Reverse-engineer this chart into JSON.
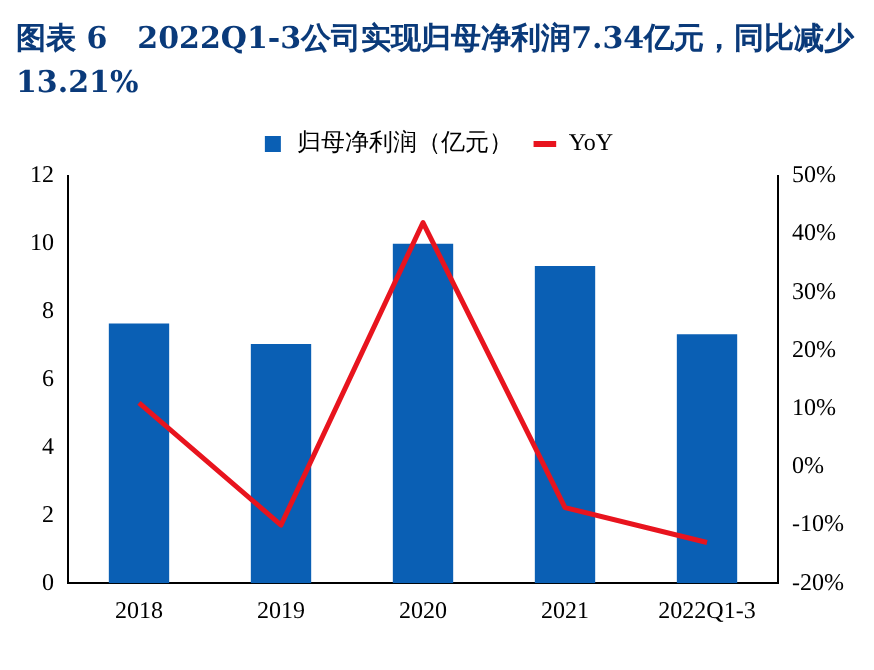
{
  "chart_data": {
    "type": "bar",
    "title": "图表 6　2022Q1-3公司实现归母净利润7.34亿元，同比减少13.21%",
    "categories": [
      "2018",
      "2019",
      "2020",
      "2021",
      "2022Q1-3"
    ],
    "series": [
      {
        "name": "归母净利润（亿元）",
        "color": "#0a5fb4",
        "values": [
          7.65,
          7.05,
          10.0,
          9.35,
          7.34
        ]
      },
      {
        "name": "YoY",
        "type": "line",
        "axis": "y2",
        "color": "#e8141e",
        "values": [
          11,
          -10,
          42,
          -7,
          -13
        ]
      }
    ],
    "ylim": [
      0,
      12
    ],
    "yticks": [
      0,
      2,
      4,
      6,
      8,
      10,
      12
    ],
    "y2lim": [
      -20,
      50
    ],
    "y2ticks": [
      {
        "value": -20,
        "label": "-20%"
      },
      {
        "value": -10,
        "label": "-10%"
      },
      {
        "value": 0,
        "label": "0%"
      },
      {
        "value": 10,
        "label": "10%"
      },
      {
        "value": 20,
        "label": "20%"
      },
      {
        "value": 30,
        "label": "30%"
      },
      {
        "value": 40,
        "label": "40%"
      },
      {
        "value": 50,
        "label": "50%"
      }
    ],
    "grid": false,
    "legend": "top",
    "marker": "none"
  }
}
